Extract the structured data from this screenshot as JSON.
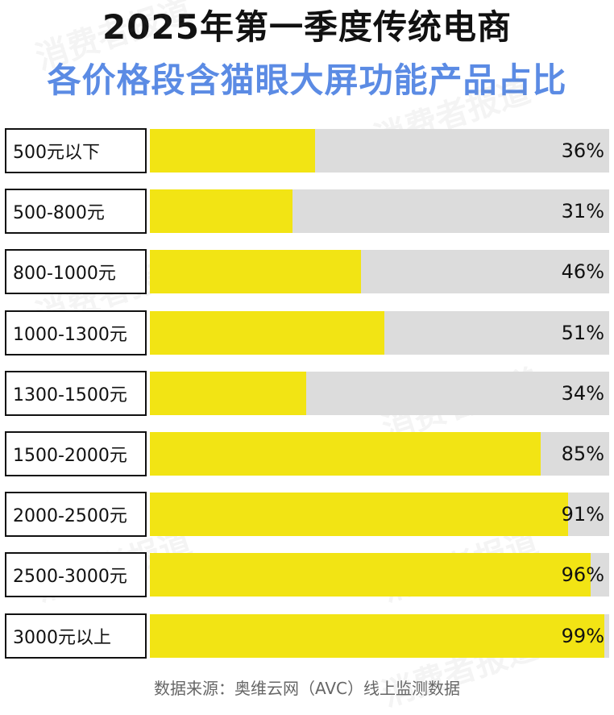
{
  "title_line1": "2025年第一季度传统电商",
  "title_line2": "各价格段含猫眼大屏功能产品占比",
  "source": "数据来源：奥维云网（AVC）线上监测数据",
  "watermark": "消费者报道",
  "colors": {
    "bar_fill": "#f2e414",
    "bar_track": "#dcdcdc",
    "title_accent": "#5b8be4",
    "title_main": "#111111"
  },
  "chart_data": {
    "type": "bar",
    "orientation": "horizontal",
    "categories": [
      "500元以下",
      "500-800元",
      "800-1000元",
      "1000-1300元",
      "1300-1500元",
      "1500-2000元",
      "2000-2500元",
      "2500-3000元",
      "3000元以上"
    ],
    "values": [
      36,
      31,
      46,
      51,
      34,
      85,
      91,
      96,
      99
    ],
    "labels": [
      "36%",
      "31%",
      "46%",
      "51%",
      "34%",
      "85%",
      "91%",
      "96%",
      "99%"
    ],
    "xlim": [
      0,
      100
    ],
    "title": "2025年第一季度传统电商各价格段含猫眼大屏功能产品占比"
  }
}
